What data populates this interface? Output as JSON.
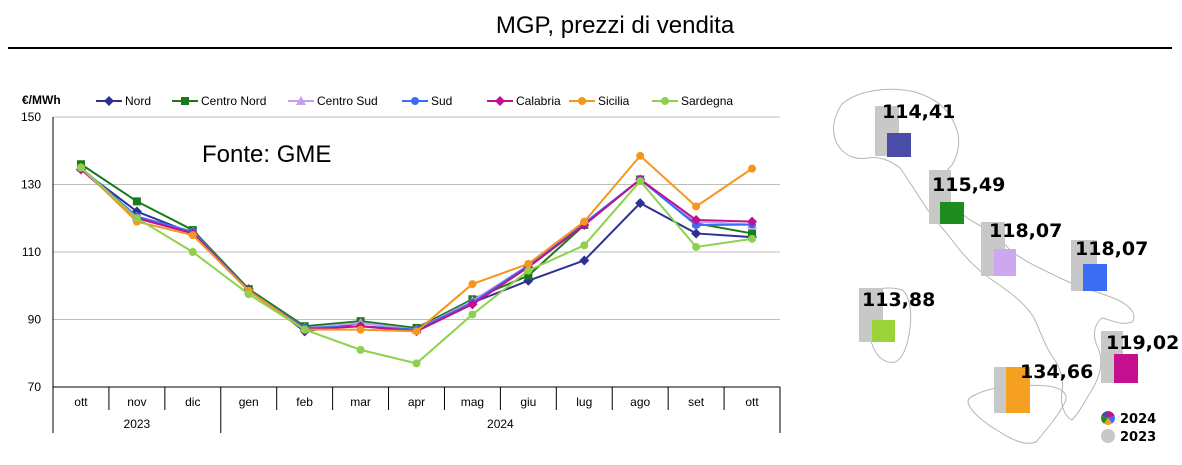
{
  "header": {
    "title": "MGP, prezzi di vendita"
  },
  "chart_data": {
    "type": "line",
    "ylabel": "€/MWh",
    "ylim": [
      70,
      150
    ],
    "yticks": [
      70,
      90,
      110,
      130,
      150
    ],
    "annotation": "Fonte: GME",
    "categories": [
      "ott",
      "nov",
      "dic",
      "gen",
      "feb",
      "mar",
      "apr",
      "mag",
      "giu",
      "lug",
      "ago",
      "set",
      "ott"
    ],
    "year_groups": [
      {
        "label": "2023",
        "start": 0,
        "count": 3
      },
      {
        "label": "2024",
        "start": 3,
        "count": 10
      }
    ],
    "legend_position": "top",
    "grid": true,
    "series": [
      {
        "name": "Nord",
        "color": "#2e3192",
        "marker": "diamond",
        "values": [
          134.5,
          122,
          115.5,
          99,
          86.5,
          89,
          87,
          95,
          101.5,
          107.5,
          124.5,
          115.5,
          114.4
        ]
      },
      {
        "name": "Centro Nord",
        "color": "#1a7a1a",
        "marker": "square",
        "values": [
          136,
          125,
          116.5,
          99,
          88,
          89.5,
          87.5,
          96,
          103,
          118,
          131.5,
          118.5,
          115.5
        ]
      },
      {
        "name": "Centro Sud",
        "color": "#c49ef0",
        "marker": "triangle",
        "values": [
          135,
          120.5,
          116,
          98.5,
          87.5,
          89,
          87,
          95.5,
          106,
          118.5,
          131.5,
          119,
          118.1
        ]
      },
      {
        "name": "Sud",
        "color": "#3b6ef5",
        "marker": "circle",
        "values": [
          135,
          120.5,
          116,
          98.5,
          87.5,
          88,
          87,
          95,
          106,
          118.5,
          131.5,
          118,
          118.1
        ]
      },
      {
        "name": "Calabria",
        "color": "#c0108f",
        "marker": "diamond",
        "values": [
          134.5,
          120,
          115.5,
          98.5,
          87,
          88,
          86.5,
          94.5,
          105.5,
          118,
          131.5,
          119.5,
          119
        ]
      },
      {
        "name": "Sicilia",
        "color": "#f5961e",
        "marker": "circle",
        "values": [
          135,
          119,
          115,
          98.5,
          87,
          87,
          86.5,
          100.5,
          106.5,
          119,
          138.5,
          123.5,
          134.7
        ]
      },
      {
        "name": "Sardegna",
        "color": "#8fd14f",
        "marker": "circle",
        "values": [
          135,
          120,
          110,
          97.5,
          87,
          81,
          77,
          91.5,
          104.5,
          112,
          131,
          111.5,
          113.9
        ]
      }
    ]
  },
  "map": {
    "zones": [
      {
        "name": "Nord",
        "value": "114,41",
        "color": "#4b4ba8"
      },
      {
        "name": "Centro Nord",
        "value": "115,49",
        "color": "#1f8c1f"
      },
      {
        "name": "Centro Sud",
        "value": "118,07",
        "color": "#cda8f0"
      },
      {
        "name": "Sud",
        "value": "118,07",
        "color": "#3b6ef5"
      },
      {
        "name": "Sardegna",
        "value": "113,88",
        "color": "#9ad43a"
      },
      {
        "name": "Sicilia",
        "value": "134,66",
        "color": "#f5a021"
      },
      {
        "name": "Calabria",
        "value": "119,02",
        "color": "#c4108f"
      }
    ],
    "legend": [
      {
        "label": "2024",
        "icon": "multicolor-circle-icon"
      },
      {
        "label": "2023",
        "icon": "gray-circle-icon"
      }
    ],
    "ghost_color": "#c8c8c8"
  }
}
